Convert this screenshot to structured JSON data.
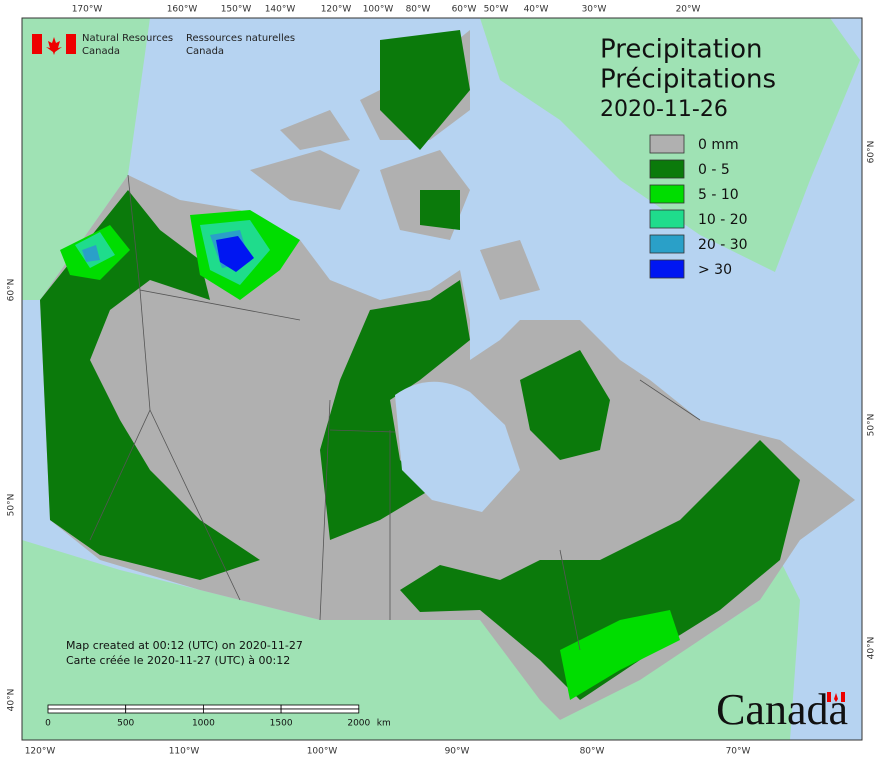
{
  "header": {
    "title": "Precipitation",
    "title_fr": "Précipitations",
    "date": "2020-11-26"
  },
  "logo": {
    "dept_en_1": "Natural Resources",
    "dept_en_2": "Canada",
    "dept_fr_1": "Ressources naturelles",
    "dept_fr_2": "Canada",
    "wordmark": "Canada"
  },
  "legend": [
    {
      "label": "0 mm",
      "color": "#b0b0b0"
    },
    {
      "label": "0 - 5",
      "color": "#0b7a0b"
    },
    {
      "label": "5 - 10",
      "color": "#00dd00"
    },
    {
      "label": "10 - 20",
      "color": "#1fdc8c"
    },
    {
      "label": "20 - 30",
      "color": "#2aa0c8"
    },
    {
      "label": "> 30",
      "color": "#0016f2"
    }
  ],
  "notes": {
    "created_en": "Map created at 00:12 (UTC) on 2020-11-27",
    "created_fr": "Carte créée le 2020-11-27 (UTC) à 00:12"
  },
  "scale_bar": {
    "labels": [
      "0",
      "500",
      "1000",
      "1500",
      "2000"
    ],
    "unit": "km"
  },
  "graticule": {
    "top": [
      "170°W",
      "160°W",
      "150°W",
      "140°W",
      "120°W",
      "100°W",
      "80°W",
      "60°W",
      "50°W",
      "40°W",
      "30°W",
      "20°W"
    ],
    "bottom": [
      "120°W",
      "110°W",
      "100°W",
      "90°W",
      "80°W",
      "70°W"
    ],
    "left": [
      "60°N",
      "50°N",
      "40°N"
    ],
    "right": [
      "60°N",
      "50°N",
      "40°N"
    ]
  }
}
